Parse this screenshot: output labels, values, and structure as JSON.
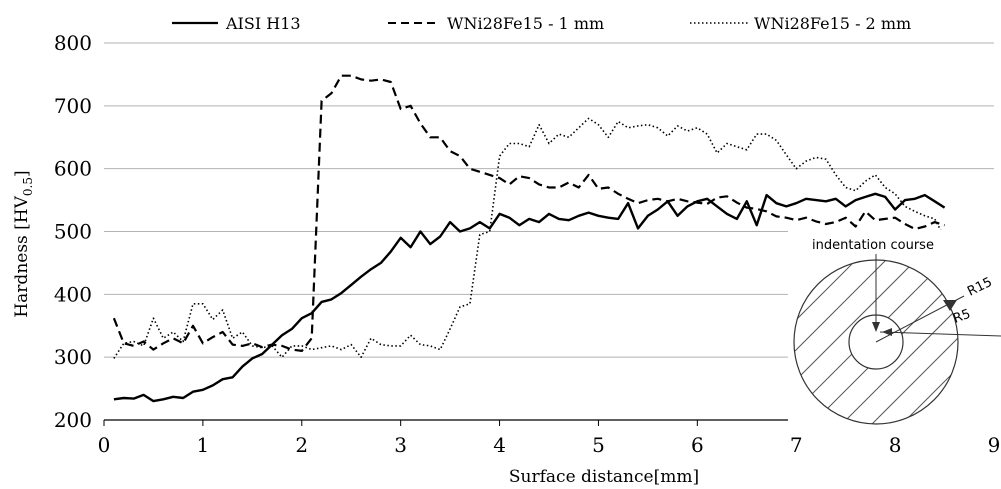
{
  "chart_data": {
    "type": "line",
    "xlabel": "Surface distance[mm]",
    "ylabel": "Hardness [HV",
    "ylabel_sub": "0.5",
    "ylabel_close": "]",
    "xlim": [
      0,
      9
    ],
    "ylim": [
      200,
      800
    ],
    "xticks": [
      0,
      1,
      2,
      3,
      4,
      5,
      6,
      7,
      8,
      9
    ],
    "yticks": [
      200,
      300,
      400,
      500,
      600,
      700,
      800
    ],
    "grid": "horizontal",
    "legend_position": "top",
    "series": [
      {
        "name": "AISI H13",
        "style": "solid",
        "color": "#000000",
        "x": [
          0.1,
          0.2,
          0.3,
          0.4,
          0.5,
          0.6,
          0.7,
          0.8,
          0.9,
          1.0,
          1.1,
          1.2,
          1.3,
          1.4,
          1.5,
          1.6,
          1.7,
          1.8,
          1.9,
          2.0,
          2.1,
          2.2,
          2.3,
          2.4,
          2.5,
          2.6,
          2.7,
          2.8,
          2.9,
          3.0,
          3.1,
          3.2,
          3.3,
          3.4,
          3.5,
          3.6,
          3.7,
          3.8,
          3.9,
          4.0,
          4.1,
          4.2,
          4.3,
          4.4,
          4.5,
          4.6,
          4.7,
          4.8,
          4.9,
          5.0,
          5.1,
          5.2,
          5.3,
          5.4,
          5.5,
          5.6,
          5.7,
          5.8,
          5.9,
          6.0,
          6.1,
          6.2,
          6.3,
          6.4,
          6.5,
          6.6,
          6.7,
          6.8,
          6.9,
          7.0,
          7.1,
          7.2,
          7.3,
          7.4,
          7.5,
          7.6,
          7.7,
          7.8,
          7.9,
          8.0,
          8.1,
          8.2,
          8.3,
          8.4,
          8.5
        ],
        "y": [
          233,
          235,
          234,
          240,
          230,
          233,
          237,
          235,
          245,
          248,
          255,
          265,
          268,
          285,
          298,
          305,
          320,
          335,
          345,
          362,
          370,
          388,
          392,
          402,
          415,
          428,
          440,
          450,
          468,
          490,
          475,
          500,
          480,
          492,
          515,
          500,
          505,
          515,
          505,
          528,
          522,
          510,
          520,
          515,
          528,
          520,
          518,
          525,
          530,
          525,
          522,
          520,
          545,
          505,
          525,
          535,
          548,
          525,
          540,
          548,
          552,
          540,
          528,
          520,
          548,
          510,
          558,
          545,
          540,
          545,
          552,
          550,
          548,
          552,
          540,
          550,
          555,
          560,
          555,
          535,
          550,
          552,
          558,
          548,
          538
        ]
      },
      {
        "name": "WNi28Fe15 - 1 mm",
        "style": "dashed",
        "color": "#000000",
        "x": [
          0.1,
          0.2,
          0.3,
          0.4,
          0.5,
          0.6,
          0.7,
          0.8,
          0.9,
          1.0,
          1.1,
          1.2,
          1.3,
          1.4,
          1.5,
          1.6,
          1.7,
          1.8,
          1.9,
          2.0,
          2.1,
          2.2,
          2.3,
          2.4,
          2.5,
          2.6,
          2.7,
          2.8,
          2.9,
          3.0,
          3.1,
          3.2,
          3.3,
          3.4,
          3.5,
          3.6,
          3.7,
          3.8,
          3.9,
          4.0,
          4.1,
          4.2,
          4.3,
          4.4,
          4.5,
          4.6,
          4.7,
          4.8,
          4.9,
          5.0,
          5.1,
          5.2,
          5.3,
          5.4,
          5.5,
          5.6,
          5.7,
          5.8,
          5.9,
          6.0,
          6.1,
          6.2,
          6.3,
          6.4,
          6.5,
          6.6,
          6.7,
          6.8,
          6.9,
          7.0,
          7.1,
          7.2,
          7.3,
          7.4,
          7.5,
          7.6,
          7.7,
          7.8,
          7.9,
          8.0,
          8.1,
          8.2,
          8.3,
          8.4,
          8.5
        ],
        "y": [
          362,
          322,
          318,
          325,
          312,
          322,
          330,
          322,
          350,
          322,
          332,
          340,
          320,
          318,
          322,
          316,
          320,
          318,
          312,
          310,
          330,
          708,
          720,
          748,
          748,
          742,
          740,
          742,
          738,
          695,
          700,
          672,
          650,
          650,
          628,
          620,
          600,
          595,
          590,
          585,
          575,
          588,
          585,
          575,
          570,
          570,
          578,
          570,
          590,
          568,
          570,
          560,
          552,
          545,
          550,
          552,
          548,
          552,
          548,
          546,
          544,
          554,
          556,
          546,
          538,
          536,
          532,
          524,
          522,
          518,
          522,
          516,
          512,
          515,
          522,
          508,
          532,
          518,
          520,
          522,
          512,
          504,
          508,
          515,
          510
        ]
      },
      {
        "name": "WNi28Fe15 - 2 mm",
        "style": "dotted",
        "color": "#000000",
        "x": [
          0.1,
          0.2,
          0.3,
          0.4,
          0.5,
          0.6,
          0.7,
          0.8,
          0.9,
          1.0,
          1.1,
          1.2,
          1.3,
          1.4,
          1.5,
          1.6,
          1.7,
          1.8,
          1.9,
          2.0,
          2.1,
          2.2,
          2.3,
          2.4,
          2.5,
          2.6,
          2.7,
          2.8,
          2.9,
          3.0,
          3.1,
          3.2,
          3.3,
          3.4,
          3.5,
          3.6,
          3.7,
          3.8,
          3.9,
          4.0,
          4.1,
          4.2,
          4.3,
          4.4,
          4.5,
          4.6,
          4.7,
          4.8,
          4.9,
          5.0,
          5.1,
          5.2,
          5.3,
          5.4,
          5.5,
          5.6,
          5.7,
          5.8,
          5.9,
          6.0,
          6.1,
          6.2,
          6.3,
          6.4,
          6.5,
          6.6,
          6.7,
          6.8,
          6.9,
          7.0,
          7.1,
          7.2,
          7.3,
          7.4,
          7.5,
          7.6,
          7.7,
          7.8,
          7.9,
          8.0,
          8.1,
          8.2,
          8.3,
          8.4,
          8.5
        ],
        "y": [
          298,
          322,
          325,
          318,
          362,
          330,
          340,
          325,
          385,
          385,
          360,
          375,
          330,
          340,
          318,
          315,
          318,
          300,
          318,
          318,
          312,
          315,
          318,
          312,
          320,
          300,
          330,
          320,
          318,
          318,
          335,
          320,
          318,
          312,
          345,
          380,
          385,
          495,
          500,
          620,
          640,
          640,
          635,
          670,
          640,
          655,
          650,
          665,
          680,
          670,
          650,
          675,
          665,
          668,
          670,
          665,
          652,
          668,
          660,
          665,
          655,
          625,
          640,
          635,
          630,
          655,
          655,
          645,
          622,
          600,
          612,
          618,
          615,
          590,
          570,
          565,
          580,
          590,
          570,
          560,
          540,
          532,
          525,
          520,
          490
        ]
      }
    ],
    "inset": {
      "label_course": "indentation course",
      "label_outer": "R15",
      "label_inner": "R5"
    }
  }
}
